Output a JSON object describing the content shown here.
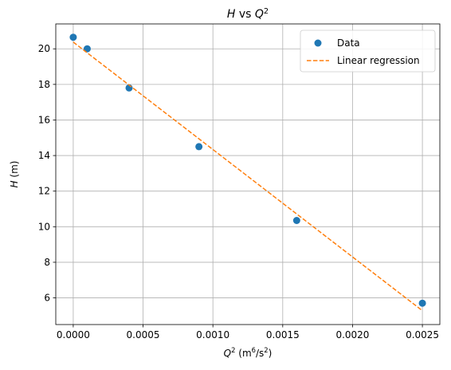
{
  "chart_data": {
    "type": "scatter",
    "title_parts": [
      {
        "text": "H",
        "style": "italic",
        "sup": false
      },
      {
        "text": " vs ",
        "style": "normal",
        "sup": false
      },
      {
        "text": "Q",
        "style": "italic",
        "sup": false
      },
      {
        "text": "2",
        "style": "normal",
        "sup": true
      }
    ],
    "xlabel_parts": [
      {
        "text": "Q",
        "style": "italic",
        "sup": false
      },
      {
        "text": "2",
        "style": "normal",
        "sup": true
      },
      {
        "text": " (m",
        "style": "normal",
        "sup": false
      },
      {
        "text": "6",
        "style": "normal",
        "sup": true
      },
      {
        "text": "/s",
        "style": "normal",
        "sup": false
      },
      {
        "text": "2",
        "style": "normal",
        "sup": true
      },
      {
        "text": ")",
        "style": "normal",
        "sup": false
      }
    ],
    "ylabel_parts": [
      {
        "text": "H",
        "style": "italic",
        "sup": false
      },
      {
        "text": " (m)",
        "style": "normal",
        "sup": false
      }
    ],
    "xlim": [
      -0.000125,
      0.002625
    ],
    "ylim": [
      4.5,
      21.4
    ],
    "xticks": [
      0.0,
      0.0005,
      0.001,
      0.0015,
      0.002,
      0.0025
    ],
    "xtick_labels": [
      "0.0000",
      "0.0005",
      "0.0010",
      "0.0015",
      "0.0020",
      "0.0025"
    ],
    "yticks": [
      6,
      8,
      10,
      12,
      14,
      16,
      18,
      20
    ],
    "ytick_labels": [
      "6",
      "8",
      "10",
      "12",
      "14",
      "16",
      "18",
      "20"
    ],
    "grid": true,
    "legend_position": "top-right",
    "series": [
      {
        "name": "Data",
        "kind": "markers",
        "color": "#1f77b4",
        "x": [
          0.0,
          0.0001,
          0.0004,
          0.0009,
          0.0016,
          0.0025
        ],
        "y": [
          20.65,
          20.0,
          17.8,
          14.5,
          10.35,
          5.7
        ]
      },
      {
        "name": "Linear regression",
        "kind": "dashed-line",
        "color": "#ff7f0e",
        "x": [
          0.0,
          0.0025
        ],
        "y": [
          20.38,
          5.28
        ]
      }
    ]
  }
}
